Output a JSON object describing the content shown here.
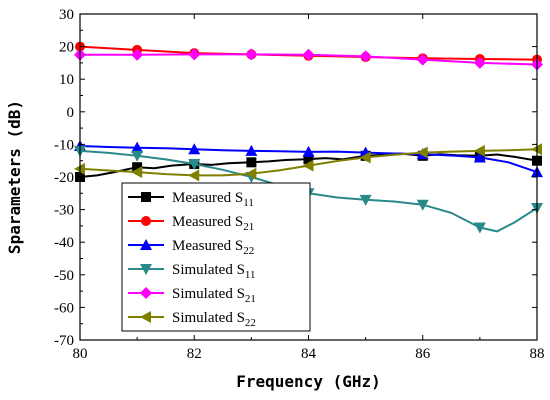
{
  "chart_data": {
    "type": "line",
    "title": "",
    "xlabel": "Frequency (GHz)",
    "ylabel": "Sparameters (dB)",
    "xlim": [
      80,
      88
    ],
    "ylim": [
      -70,
      30
    ],
    "xticks": [
      80,
      82,
      84,
      86,
      88
    ],
    "yticks": [
      -70,
      -60,
      -50,
      -40,
      -30,
      -20,
      -10,
      0,
      10,
      20,
      30
    ],
    "grid": false,
    "legend_position": "bottom-left",
    "series": [
      {
        "name": "Measured S11",
        "label_main": "Measured S",
        "label_sub": "11",
        "color": "#000000",
        "marker": "square",
        "x": [
          80,
          81,
          82,
          83,
          84,
          85,
          86,
          87,
          88
        ],
        "y": [
          -20,
          -17,
          -16,
          -15.5,
          -14.5,
          -13.5,
          -13.5,
          -13.5,
          -15
        ],
        "line_x": [
          80,
          80.3,
          80.6,
          81,
          81.3,
          81.6,
          82,
          82.3,
          82.6,
          83,
          83.3,
          83.6,
          84,
          84.3,
          84.6,
          85,
          85.3,
          85.6,
          86,
          86.3,
          86.6,
          87,
          87.3,
          87.6,
          88
        ],
        "line_y": [
          -20,
          -19.5,
          -18.5,
          -17,
          -17.3,
          -16.5,
          -16,
          -16.3,
          -15.8,
          -15.5,
          -15.2,
          -14.8,
          -14.5,
          -14.2,
          -14.6,
          -13.5,
          -13.2,
          -12.8,
          -13.5,
          -13,
          -13.3,
          -13.5,
          -13.1,
          -13.8,
          -15
        ]
      },
      {
        "name": "Measured S21",
        "label_main": "Measured S",
        "label_sub": "21",
        "color": "#ff0000",
        "marker": "circle",
        "x": [
          80,
          81,
          82,
          83,
          84,
          85,
          86,
          87,
          88
        ],
        "y": [
          20,
          19,
          18,
          17.6,
          17.2,
          16.8,
          16.4,
          16.2,
          16
        ],
        "line_x": [
          80,
          81,
          82,
          83,
          84,
          85,
          86,
          87,
          88
        ],
        "line_y": [
          20,
          19,
          18,
          17.6,
          17.2,
          16.8,
          16.4,
          16.2,
          16
        ]
      },
      {
        "name": "Measured S22",
        "label_main": "Measured S",
        "label_sub": "22",
        "color": "#0000ff",
        "marker": "triangle-up",
        "x": [
          80,
          81,
          82,
          83,
          84,
          85,
          86,
          87,
          88
        ],
        "y": [
          -10.5,
          -11,
          -11.5,
          -12,
          -12.3,
          -12.5,
          -13,
          -14,
          -18.5
        ],
        "line_x": [
          80,
          80.5,
          81,
          81.5,
          82,
          82.5,
          83,
          83.5,
          84,
          84.5,
          85,
          85.5,
          86,
          86.5,
          87,
          87.5,
          88
        ],
        "line_y": [
          -10.5,
          -10.8,
          -11,
          -11.2,
          -11.5,
          -11.8,
          -12,
          -12.1,
          -12.3,
          -12.2,
          -12.5,
          -12.8,
          -13,
          -13.4,
          -14,
          -15.5,
          -18.5
        ]
      },
      {
        "name": "Simulated S11",
        "label_main": "Simulated S",
        "label_sub": "11",
        "color": "#2a8a8a",
        "marker": "triangle-down",
        "x": [
          80,
          81,
          82,
          83,
          84,
          85,
          86,
          87,
          88
        ],
        "y": [
          -12,
          -13.5,
          -16,
          -20,
          -25,
          -27,
          -28.5,
          -35.5,
          -29.5
        ],
        "line_x": [
          80,
          80.5,
          81,
          81.5,
          82,
          82.5,
          83,
          83.5,
          84,
          84.5,
          85,
          85.5,
          86,
          86.5,
          87,
          87.3,
          87.6,
          88
        ],
        "line_y": [
          -12,
          -12.6,
          -13.5,
          -14.6,
          -16,
          -17.8,
          -20,
          -22.6,
          -25,
          -26.3,
          -27,
          -27.5,
          -28.5,
          -31,
          -35.5,
          -36.7,
          -34,
          -29.5
        ]
      },
      {
        "name": "Simulated S21",
        "label_main": "Simulated S",
        "label_sub": "21",
        "color": "#ff00ff",
        "marker": "diamond",
        "x": [
          80,
          81,
          82,
          83,
          84,
          85,
          86,
          87,
          88
        ],
        "y": [
          17.5,
          17.5,
          17.6,
          17.6,
          17.5,
          17,
          16,
          15,
          14.5
        ],
        "line_x": [
          80,
          81,
          82,
          83,
          84,
          85,
          86,
          87,
          88
        ],
        "line_y": [
          17.5,
          17.5,
          17.6,
          17.6,
          17.5,
          17,
          16,
          15,
          14.5
        ]
      },
      {
        "name": "Simulated S22",
        "label_main": "Simulated S",
        "label_sub": "22",
        "color": "#808000",
        "marker": "triangle-left",
        "x": [
          80,
          81,
          82,
          83,
          84,
          85,
          86,
          87,
          88
        ],
        "y": [
          -17.5,
          -18.5,
          -19.5,
          -19,
          -16.5,
          -14,
          -12.5,
          -12,
          -11.5
        ],
        "line_x": [
          80,
          80.5,
          81,
          81.5,
          82,
          82.5,
          83,
          83.5,
          84,
          84.5,
          85,
          85.5,
          86,
          86.5,
          87,
          87.5,
          88
        ],
        "line_y": [
          -17.5,
          -18,
          -18.5,
          -19.1,
          -19.5,
          -19.5,
          -19,
          -17.9,
          -16.5,
          -15.1,
          -14,
          -13.2,
          -12.5,
          -12.2,
          -12,
          -11.8,
          -11.5
        ]
      }
    ]
  }
}
